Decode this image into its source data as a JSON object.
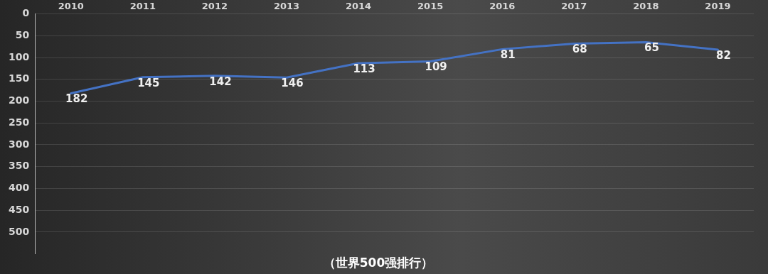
{
  "chart_data": {
    "type": "line",
    "title": "（世界500强排行）",
    "categories": [
      "2010",
      "2011",
      "2012",
      "2013",
      "2014",
      "2015",
      "2016",
      "2017",
      "2018",
      "2019"
    ],
    "series": [
      {
        "color": "#4472c4",
        "values": [
          182,
          145,
          142,
          146,
          113,
          109,
          81,
          68,
          65,
          82
        ]
      }
    ],
    "ylim": [
      550,
      0
    ],
    "yticks": [
      0,
      50,
      100,
      150,
      200,
      250,
      300,
      350,
      400,
      450,
      500
    ],
    "grid": "y",
    "data_labels": true,
    "marker": "none",
    "line_style": "solid",
    "legend": false
  }
}
